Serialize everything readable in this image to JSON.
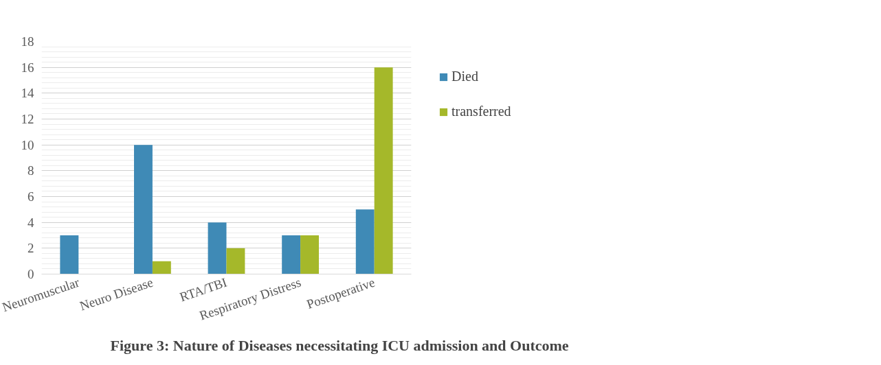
{
  "chart_data": {
    "type": "bar",
    "title": "Figure 3: Nature of Diseases necessitating ICU admission  and Outcome",
    "categories": [
      "Neuromuscular",
      "Neuro Disease",
      "RTA/TBI",
      "Respiratory Distress",
      "Postoperative"
    ],
    "series": [
      {
        "name": "Died",
        "color": "#3f8ab6",
        "values": [
          3,
          10,
          4,
          3,
          5
        ]
      },
      {
        "name": "transferred",
        "color": "#a5b82a",
        "values": [
          0,
          1,
          2,
          3,
          16
        ]
      }
    ],
    "ylim": [
      0,
      18
    ],
    "yticks": [
      0,
      2,
      4,
      6,
      8,
      10,
      12,
      14,
      16,
      18
    ],
    "grid": "y",
    "legend": "right"
  }
}
